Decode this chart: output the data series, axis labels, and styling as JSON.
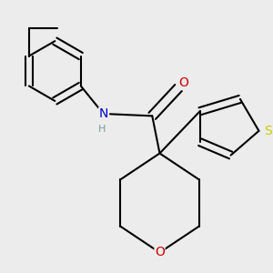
{
  "background_color": "#ececec",
  "atom_colors": {
    "C": "#000000",
    "N": "#0000cc",
    "O": "#cc0000",
    "S": "#cccc00",
    "H": "#7a9a9a"
  },
  "figsize": [
    3.0,
    3.0
  ],
  "dpi": 100
}
